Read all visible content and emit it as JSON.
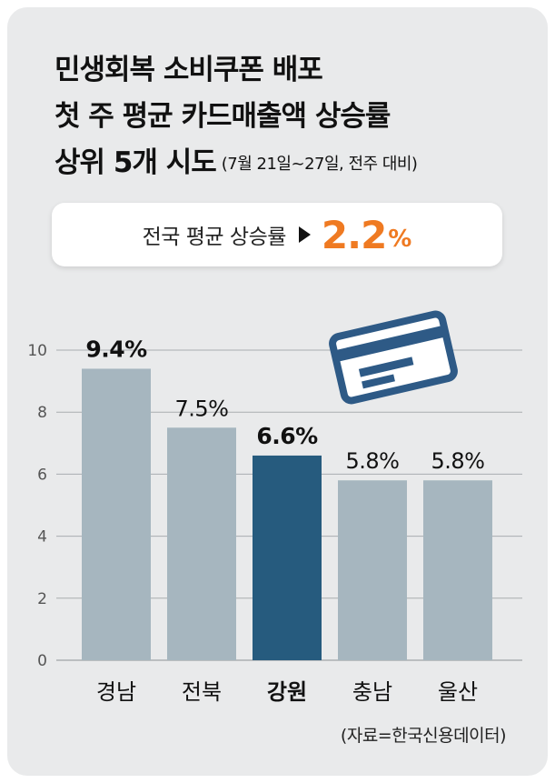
{
  "header": {
    "title_lines": [
      "민생회복 소비쿠폰 배포",
      "첫 주 평균 카드매출액 상승률",
      "상위 5개 시도"
    ],
    "period_note": "(7월 21일~27일, 전주 대비)"
  },
  "summary": {
    "label": "전국 평균 상승률",
    "value": "2.2",
    "unit": "%"
  },
  "colors": {
    "background": "#e9eaeb",
    "bar": "#a6b6bf",
    "highlight_bar": "#265b7e",
    "accent": "#ef7a22",
    "card_icon": "#2e5a86"
  },
  "icon": "credit-card-icon",
  "chart_data": {
    "type": "bar",
    "categories": [
      "경남",
      "전북",
      "강원",
      "충남",
      "울산"
    ],
    "values": [
      9.4,
      7.5,
      6.6,
      5.8,
      5.8
    ],
    "value_labels": [
      "9.4%",
      "7.5%",
      "6.6%",
      "5.8%",
      "5.8%"
    ],
    "highlight": "강원",
    "bold_labels": [
      "경남",
      "강원"
    ],
    "yticks": [
      0,
      2,
      4,
      6,
      8,
      10
    ],
    "ylim": [
      0,
      10
    ],
    "grid": true
  },
  "source": "(자료=한국신용데이터)"
}
